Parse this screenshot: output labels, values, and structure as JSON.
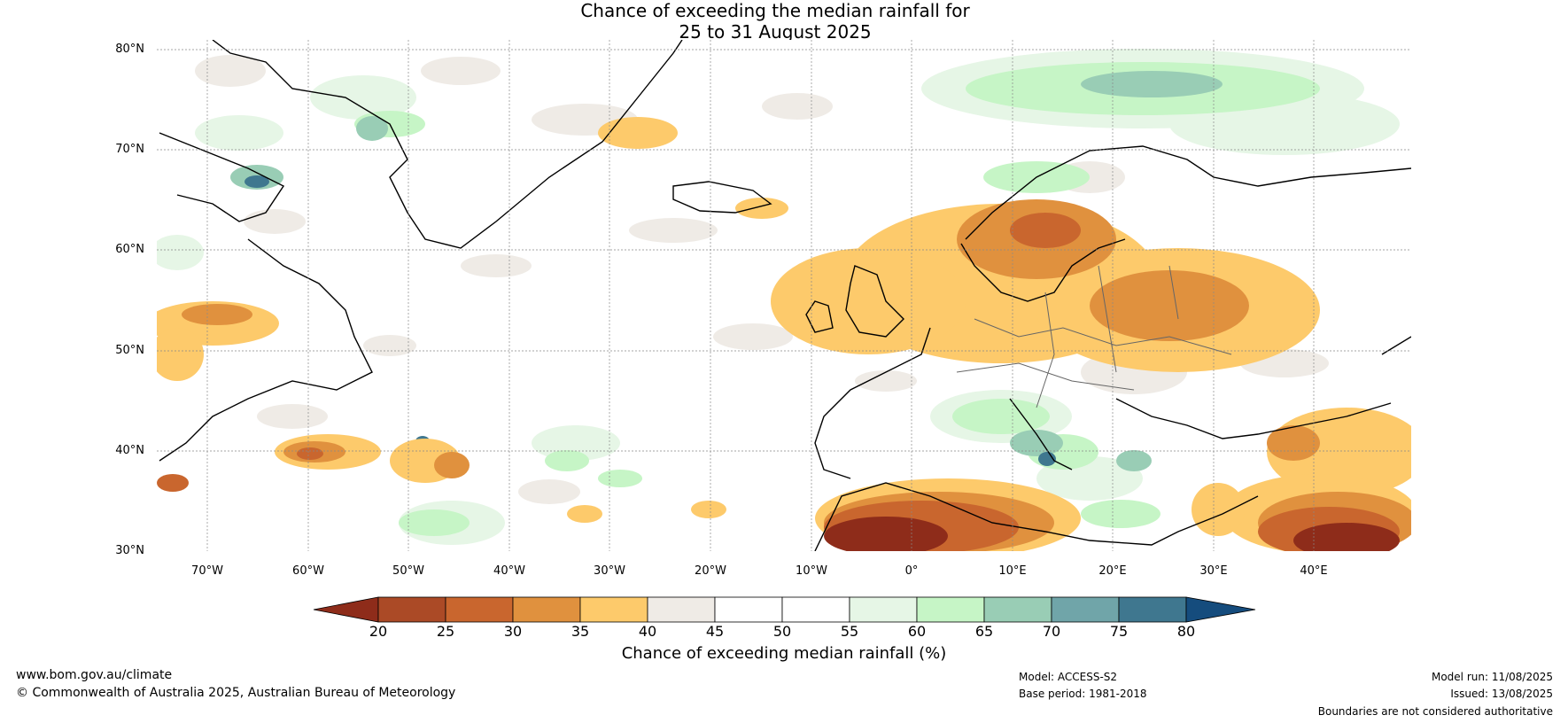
{
  "title_line1": "Chance of exceeding the median rainfall for",
  "title_line2": "25 to 31 August 2025",
  "latitudes": [
    "80°N",
    "70°N",
    "60°N",
    "50°N",
    "40°N",
    "30°N"
  ],
  "longitudes": [
    "70°W",
    "60°W",
    "50°W",
    "40°W",
    "30°W",
    "20°W",
    "10°W",
    "0°",
    "10°E",
    "20°E",
    "30°E",
    "40°E"
  ],
  "colorbar": {
    "ticks": [
      "20",
      "25",
      "30",
      "35",
      "40",
      "45",
      "50",
      "55",
      "60",
      "65",
      "70",
      "75",
      "80"
    ],
    "colors": [
      "#8e2c1a",
      "#ab4a26",
      "#c9662e",
      "#e0913e",
      "#fdca6b",
      "#efebe6",
      "#ffffff",
      "#ffffff",
      "#e6f6e6",
      "#c6f5c6",
      "#99cdb5",
      "#70a5a9",
      "#3f778f",
      "#154c7d"
    ],
    "label": "Chance of exceeding median rainfall (%)"
  },
  "footer": {
    "website": "www.bom.gov.au/climate",
    "copyright": "© Commonwealth of Australia 2025, Australian Bureau of Meteorology",
    "model": "Model: ACCESS-S2",
    "base_period": "Base period: 1981-2018",
    "model_run": "Model run: 11/08/2025",
    "issued": "Issued: 13/08/2025",
    "disclaimer": "Boundaries are not considered authoritative"
  }
}
